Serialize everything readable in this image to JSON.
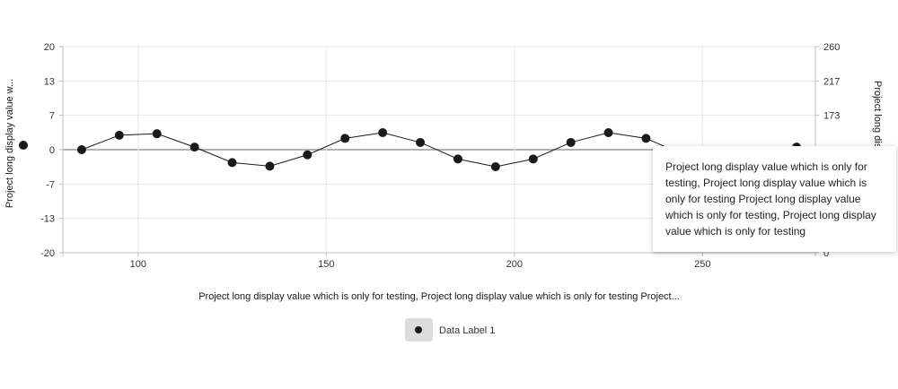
{
  "chart_data": {
    "type": "line",
    "x": [
      85,
      95,
      105,
      115,
      125,
      135,
      145,
      155,
      165,
      175,
      185,
      195,
      205,
      215,
      225,
      235,
      245,
      255,
      265,
      275
    ],
    "series": [
      {
        "name": "Data Label 1",
        "axis": "left",
        "color": "#1a1a1a",
        "values": [
          0,
          2.8,
          3.1,
          0.5,
          -2.5,
          -3.2,
          -1,
          2.2,
          3.3,
          1.4,
          -1.8,
          -3.3,
          -1.8,
          1.4,
          3.3,
          2.2,
          -1,
          -3.2,
          -2.5,
          0.5
        ]
      }
    ],
    "xlabel": "Project long display value which is only for testing, Project long display value which is only for testing Project...",
    "ylabel_left": "Project long display value w...",
    "ylabel_right": "Project long dis",
    "xlim": [
      80,
      280
    ],
    "ylim_left": [
      -20,
      20
    ],
    "ylim_right": [
      0,
      260
    ],
    "xticks": [
      100,
      150,
      200,
      250
    ],
    "yticks_left": [
      {
        "value": 20,
        "label": "20"
      },
      {
        "value": 13.33,
        "label": "13"
      },
      {
        "value": 6.67,
        "label": "7"
      },
      {
        "value": 0,
        "label": "0"
      },
      {
        "value": -6.67,
        "label": "-7"
      },
      {
        "value": -13.33,
        "label": "-13"
      },
      {
        "value": -20,
        "label": "-20"
      }
    ],
    "yticks_right": [
      {
        "value": 260,
        "label": "260"
      },
      {
        "value": 216.67,
        "label": "217"
      },
      {
        "value": 173.33,
        "label": "173"
      },
      {
        "value": 0,
        "label": "0"
      }
    ],
    "grid": true,
    "legend": {
      "placement": "bottom-center",
      "entries": [
        "Data Label 1"
      ]
    },
    "tooltip": {
      "text": "Project long display value which is only for testing, Project long display value which is only for testing Project long display value which is only for testing, Project long display value which is only for testing"
    },
    "colors": {
      "series": "#1a1a1a",
      "grid": "#e6e6e6",
      "axis": "#bfbfbf",
      "zero_line": "#999999",
      "legend_box": "#dddddd"
    }
  }
}
